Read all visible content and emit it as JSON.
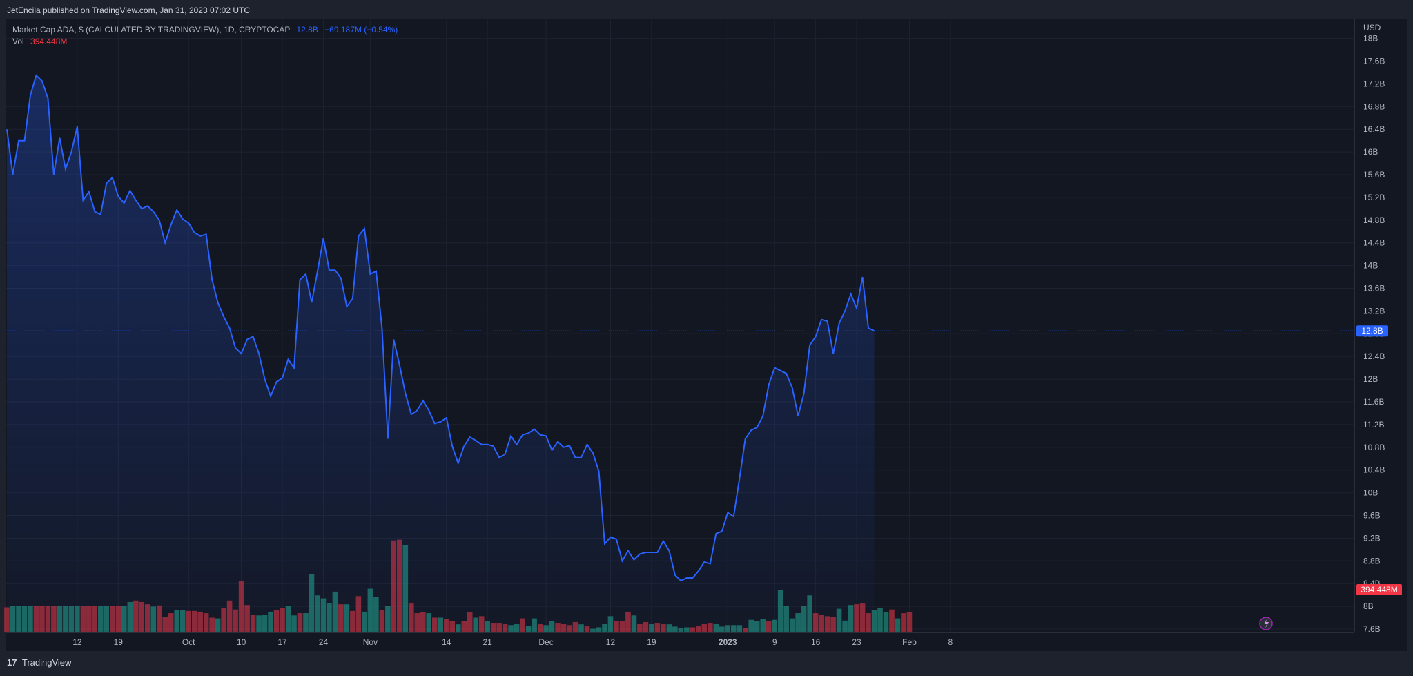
{
  "publisher": "JetEncila published on TradingView.com, Jan 31, 2023 07:02 UTC",
  "legend": {
    "symbol": "Market Cap ADA, $ (CALCULATED BY TRADINGVIEW), 1D, CRYPTOCAP",
    "last": "12.8B",
    "change": "−69.187M (−0.54%)",
    "vol_label": "Vol",
    "vol_value": "394.448M"
  },
  "footer": {
    "brand": "TradingView"
  },
  "colors": {
    "line": "#2962ff",
    "up": "#22ab94",
    "down": "#f23645",
    "bg": "#131722"
  },
  "chart_data": {
    "type": "line",
    "currency": "USD",
    "price_tag": "12.8B",
    "volume_tag": "394.448M",
    "y_ticks": [
      "18B",
      "17.6B",
      "17.2B",
      "16.8B",
      "16.4B",
      "16B",
      "15.6B",
      "15.2B",
      "14.8B",
      "14.4B",
      "14B",
      "13.6B",
      "13.2B",
      "12.8B",
      "12.4B",
      "12B",
      "11.6B",
      "11.2B",
      "10.8B",
      "10.4B",
      "10B",
      "9.6B",
      "9.2B",
      "8.8B",
      "8.4B",
      "8B",
      "7.6B"
    ],
    "x_ticks": [
      {
        "label": "12",
        "day": 12
      },
      {
        "label": "19",
        "day": 19
      },
      {
        "label": "Oct",
        "day": 31
      },
      {
        "label": "10",
        "day": 40
      },
      {
        "label": "17",
        "day": 47
      },
      {
        "label": "24",
        "day": 54
      },
      {
        "label": "Nov",
        "day": 62
      },
      {
        "label": "14",
        "day": 75
      },
      {
        "label": "21",
        "day": 82
      },
      {
        "label": "Dec",
        "day": 92
      },
      {
        "label": "12",
        "day": 103
      },
      {
        "label": "19",
        "day": 110
      },
      {
        "label": "2023",
        "day": 123
      },
      {
        "label": "9",
        "day": 131
      },
      {
        "label": "16",
        "day": 138
      },
      {
        "label": "23",
        "day": 145
      },
      {
        "label": "Feb",
        "day": 154
      },
      {
        "label": "8",
        "day": 161
      }
    ],
    "ylim": [
      7.6,
      18.0
    ],
    "values": [
      16.4,
      15.6,
      16.2,
      16.2,
      17.0,
      17.35,
      17.25,
      16.95,
      15.6,
      16.25,
      15.7,
      16.0,
      16.45,
      15.15,
      15.3,
      14.95,
      14.9,
      15.45,
      15.55,
      15.22,
      15.1,
      15.32,
      15.15,
      15.0,
      15.05,
      14.95,
      14.8,
      14.4,
      14.72,
      14.98,
      14.82,
      14.75,
      14.58,
      14.52,
      14.55,
      13.75,
      13.35,
      13.1,
      12.9,
      12.55,
      12.45,
      12.7,
      12.75,
      12.45,
      12.0,
      11.7,
      11.95,
      12.02,
      12.35,
      12.2,
      13.75,
      13.85,
      13.35,
      13.9,
      14.48,
      13.92,
      13.92,
      13.78,
      13.28,
      13.42,
      14.52,
      14.65,
      13.85,
      13.9,
      12.9,
      10.95,
      12.7,
      12.25,
      11.75,
      11.38,
      11.45,
      11.62,
      11.45,
      11.22,
      11.25,
      11.32,
      10.82,
      10.52,
      10.82,
      10.98,
      10.92,
      10.85,
      10.85,
      10.82,
      10.62,
      10.68,
      11.0,
      10.85,
      11.02,
      11.05,
      11.12,
      11.02,
      11.0,
      10.75,
      10.9,
      10.8,
      10.83,
      10.62,
      10.62,
      10.85,
      10.7,
      10.38,
      9.1,
      9.22,
      9.18,
      8.8,
      8.98,
      8.82,
      8.92,
      8.95,
      8.95,
      8.95,
      9.15,
      8.98,
      8.55,
      8.45,
      8.5,
      8.5,
      8.62,
      8.78,
      8.75,
      9.28,
      9.32,
      9.65,
      9.58,
      10.25,
      10.95,
      11.1,
      11.15,
      11.35,
      11.9,
      12.2,
      12.15,
      12.1,
      11.85,
      11.35,
      11.75,
      12.6,
      12.75,
      13.05,
      13.02,
      12.45,
      12.98,
      13.2,
      13.5,
      13.25,
      13.8,
      12.9,
      12.85
    ],
    "volume": [
      {
        "v": 0.34,
        "up": false
      },
      {
        "v": 0.355,
        "up": true
      },
      {
        "v": 0.355,
        "up": true
      },
      {
        "v": 0.355,
        "up": true
      },
      {
        "v": 0.355,
        "up": true
      },
      {
        "v": 0.355,
        "up": false
      },
      {
        "v": 0.355,
        "up": false
      },
      {
        "v": 0.355,
        "up": false
      },
      {
        "v": 0.355,
        "up": false
      },
      {
        "v": 0.355,
        "up": true
      },
      {
        "v": 0.355,
        "up": true
      },
      {
        "v": 0.355,
        "up": true
      },
      {
        "v": 0.355,
        "up": true
      },
      {
        "v": 0.355,
        "up": false
      },
      {
        "v": 0.355,
        "up": false
      },
      {
        "v": 0.355,
        "up": false
      },
      {
        "v": 0.355,
        "up": true
      },
      {
        "v": 0.355,
        "up": true
      },
      {
        "v": 0.355,
        "up": false
      },
      {
        "v": 0.355,
        "up": false
      },
      {
        "v": 0.355,
        "up": true
      },
      {
        "v": 0.41,
        "up": true
      },
      {
        "v": 0.43,
        "up": false
      },
      {
        "v": 0.41,
        "up": false
      },
      {
        "v": 0.38,
        "up": false
      },
      {
        "v": 0.35,
        "up": true
      },
      {
        "v": 0.365,
        "up": false
      },
      {
        "v": 0.21,
        "up": false
      },
      {
        "v": 0.26,
        "up": false
      },
      {
        "v": 0.3,
        "up": true
      },
      {
        "v": 0.3,
        "up": true
      },
      {
        "v": 0.29,
        "up": false
      },
      {
        "v": 0.29,
        "up": false
      },
      {
        "v": 0.28,
        "up": false
      },
      {
        "v": 0.26,
        "up": false
      },
      {
        "v": 0.2,
        "up": false
      },
      {
        "v": 0.19,
        "up": true
      },
      {
        "v": 0.33,
        "up": false
      },
      {
        "v": 0.43,
        "up": false
      },
      {
        "v": 0.31,
        "up": false
      },
      {
        "v": 0.69,
        "up": false
      },
      {
        "v": 0.37,
        "up": false
      },
      {
        "v": 0.24,
        "up": false
      },
      {
        "v": 0.23,
        "up": true
      },
      {
        "v": 0.24,
        "up": true
      },
      {
        "v": 0.28,
        "up": true
      },
      {
        "v": 0.3,
        "up": false
      },
      {
        "v": 0.33,
        "up": false
      },
      {
        "v": 0.36,
        "up": true
      },
      {
        "v": 0.23,
        "up": true
      },
      {
        "v": 0.26,
        "up": false
      },
      {
        "v": 0.26,
        "up": true
      },
      {
        "v": 0.79,
        "up": true
      },
      {
        "v": 0.5,
        "up": true
      },
      {
        "v": 0.46,
        "up": true
      },
      {
        "v": 0.4,
        "up": true
      },
      {
        "v": 0.55,
        "up": true
      },
      {
        "v": 0.38,
        "up": false
      },
      {
        "v": 0.38,
        "up": true
      },
      {
        "v": 0.29,
        "up": false
      },
      {
        "v": 0.49,
        "up": false
      },
      {
        "v": 0.28,
        "up": true
      },
      {
        "v": 0.59,
        "up": true
      },
      {
        "v": 0.48,
        "up": true
      },
      {
        "v": 0.3,
        "up": false
      },
      {
        "v": 0.36,
        "up": true
      },
      {
        "v": 1.24,
        "up": false
      },
      {
        "v": 1.25,
        "up": false
      },
      {
        "v": 1.18,
        "up": true
      },
      {
        "v": 0.39,
        "up": false
      },
      {
        "v": 0.26,
        "up": false
      },
      {
        "v": 0.27,
        "up": false
      },
      {
        "v": 0.26,
        "up": true
      },
      {
        "v": 0.2,
        "up": false
      },
      {
        "v": 0.2,
        "up": true
      },
      {
        "v": 0.18,
        "up": false
      },
      {
        "v": 0.15,
        "up": false
      },
      {
        "v": 0.11,
        "up": true
      },
      {
        "v": 0.15,
        "up": false
      },
      {
        "v": 0.27,
        "up": false
      },
      {
        "v": 0.2,
        "up": true
      },
      {
        "v": 0.22,
        "up": false
      },
      {
        "v": 0.15,
        "up": true
      },
      {
        "v": 0.13,
        "up": false
      },
      {
        "v": 0.13,
        "up": false
      },
      {
        "v": 0.12,
        "up": false
      },
      {
        "v": 0.1,
        "up": true
      },
      {
        "v": 0.12,
        "up": true
      },
      {
        "v": 0.19,
        "up": false
      },
      {
        "v": 0.09,
        "up": true
      },
      {
        "v": 0.19,
        "up": true
      },
      {
        "v": 0.12,
        "up": false
      },
      {
        "v": 0.1,
        "up": true
      },
      {
        "v": 0.15,
        "up": true
      },
      {
        "v": 0.13,
        "up": false
      },
      {
        "v": 0.12,
        "up": false
      },
      {
        "v": 0.1,
        "up": false
      },
      {
        "v": 0.14,
        "up": false
      },
      {
        "v": 0.11,
        "up": true
      },
      {
        "v": 0.09,
        "up": false
      },
      {
        "v": 0.05,
        "up": true
      },
      {
        "v": 0.07,
        "up": true
      },
      {
        "v": 0.12,
        "up": true
      },
      {
        "v": 0.22,
        "up": true
      },
      {
        "v": 0.15,
        "up": false
      },
      {
        "v": 0.15,
        "up": false
      },
      {
        "v": 0.28,
        "up": false
      },
      {
        "v": 0.23,
        "up": true
      },
      {
        "v": 0.12,
        "up": false
      },
      {
        "v": 0.14,
        "up": false
      },
      {
        "v": 0.12,
        "up": true
      },
      {
        "v": 0.13,
        "up": false
      },
      {
        "v": 0.12,
        "up": false
      },
      {
        "v": 0.11,
        "up": true
      },
      {
        "v": 0.08,
        "up": true
      },
      {
        "v": 0.06,
        "up": true
      },
      {
        "v": 0.07,
        "up": true
      },
      {
        "v": 0.07,
        "up": false
      },
      {
        "v": 0.09,
        "up": false
      },
      {
        "v": 0.12,
        "up": false
      },
      {
        "v": 0.13,
        "up": false
      },
      {
        "v": 0.12,
        "up": true
      },
      {
        "v": 0.08,
        "up": true
      },
      {
        "v": 0.1,
        "up": true
      },
      {
        "v": 0.1,
        "up": true
      },
      {
        "v": 0.1,
        "up": true
      },
      {
        "v": 0.06,
        "up": false
      },
      {
        "v": 0.17,
        "up": true
      },
      {
        "v": 0.15,
        "up": true
      },
      {
        "v": 0.18,
        "up": true
      },
      {
        "v": 0.15,
        "up": false
      },
      {
        "v": 0.17,
        "up": true
      },
      {
        "v": 0.57,
        "up": true
      },
      {
        "v": 0.36,
        "up": true
      },
      {
        "v": 0.19,
        "up": true
      },
      {
        "v": 0.26,
        "up": true
      },
      {
        "v": 0.36,
        "up": true
      },
      {
        "v": 0.5,
        "up": true
      },
      {
        "v": 0.26,
        "up": false
      },
      {
        "v": 0.24,
        "up": false
      },
      {
        "v": 0.22,
        "up": false
      },
      {
        "v": 0.21,
        "up": false
      },
      {
        "v": 0.32,
        "up": true
      },
      {
        "v": 0.16,
        "up": true
      },
      {
        "v": 0.37,
        "up": true
      },
      {
        "v": 0.38,
        "up": false
      },
      {
        "v": 0.39,
        "up": false
      },
      {
        "v": 0.26,
        "up": false
      },
      {
        "v": 0.3,
        "up": true
      },
      {
        "v": 0.33,
        "up": true
      },
      {
        "v": 0.27,
        "up": true
      },
      {
        "v": 0.31,
        "up": false
      },
      {
        "v": 0.19,
        "up": true
      },
      {
        "v": 0.26,
        "up": false
      },
      {
        "v": 0.275,
        "up": false
      }
    ]
  }
}
